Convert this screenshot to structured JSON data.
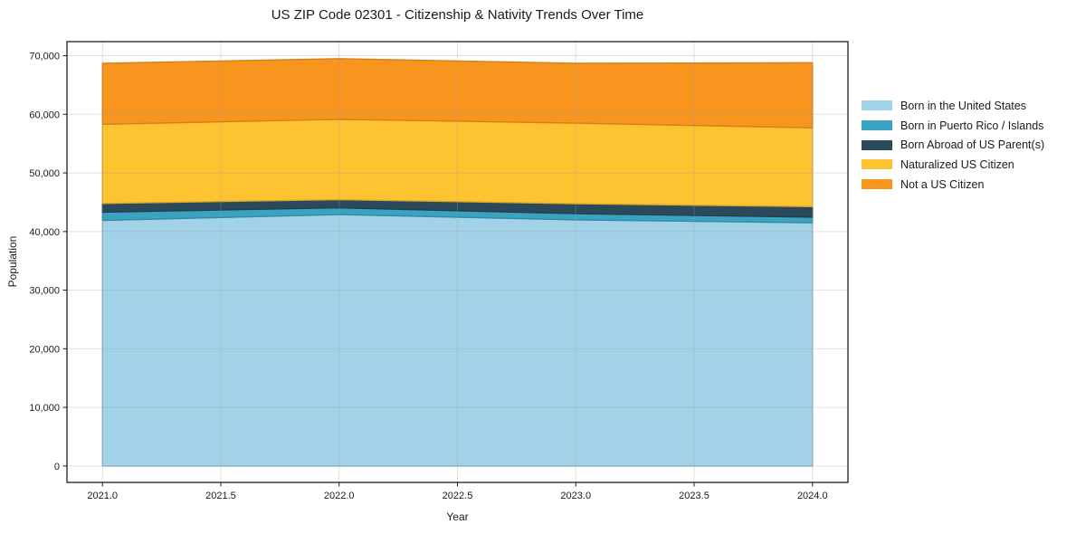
{
  "chart_data": {
    "type": "area",
    "stacked": true,
    "title": "US ZIP Code 02301 - Citizenship & Nativity Trends Over Time",
    "xlabel": "Year",
    "ylabel": "Population",
    "x": [
      2021,
      2022,
      2023,
      2024
    ],
    "series": [
      {
        "name": "Born in the United States",
        "color": "#a2d2e8",
        "values": [
          41900,
          42900,
          42000,
          41500
        ]
      },
      {
        "name": "Born in Puerto Rico / Islands",
        "color": "#3aa3bf",
        "values": [
          1400,
          1150,
          1050,
          950
        ]
      },
      {
        "name": "Born Abroad of US Parent(s)",
        "color": "#2a4a5c",
        "values": [
          1500,
          1400,
          1700,
          1800
        ]
      },
      {
        "name": "Naturalized US Citizen",
        "color": "#fdc330",
        "values": [
          13500,
          13700,
          13750,
          13450
        ]
      },
      {
        "name": "Not a US Citizen",
        "color": "#f8951e",
        "values": [
          10400,
          10350,
          10200,
          11100
        ]
      }
    ],
    "xlim": [
      2020.85,
      2024.15
    ],
    "ylim": [
      -2800,
      72400
    ],
    "xticks": [
      2021.0,
      2021.5,
      2022.0,
      2022.5,
      2023.0,
      2023.5,
      2024.0
    ],
    "yticks": [
      0,
      10000,
      20000,
      30000,
      40000,
      50000,
      60000,
      70000
    ],
    "grid": true,
    "grid_color": "rgba(160,160,160,0.32)",
    "spine_color": "#1f1f1f",
    "tick_label_color": "#1a1a1a",
    "legend_position": "right"
  }
}
